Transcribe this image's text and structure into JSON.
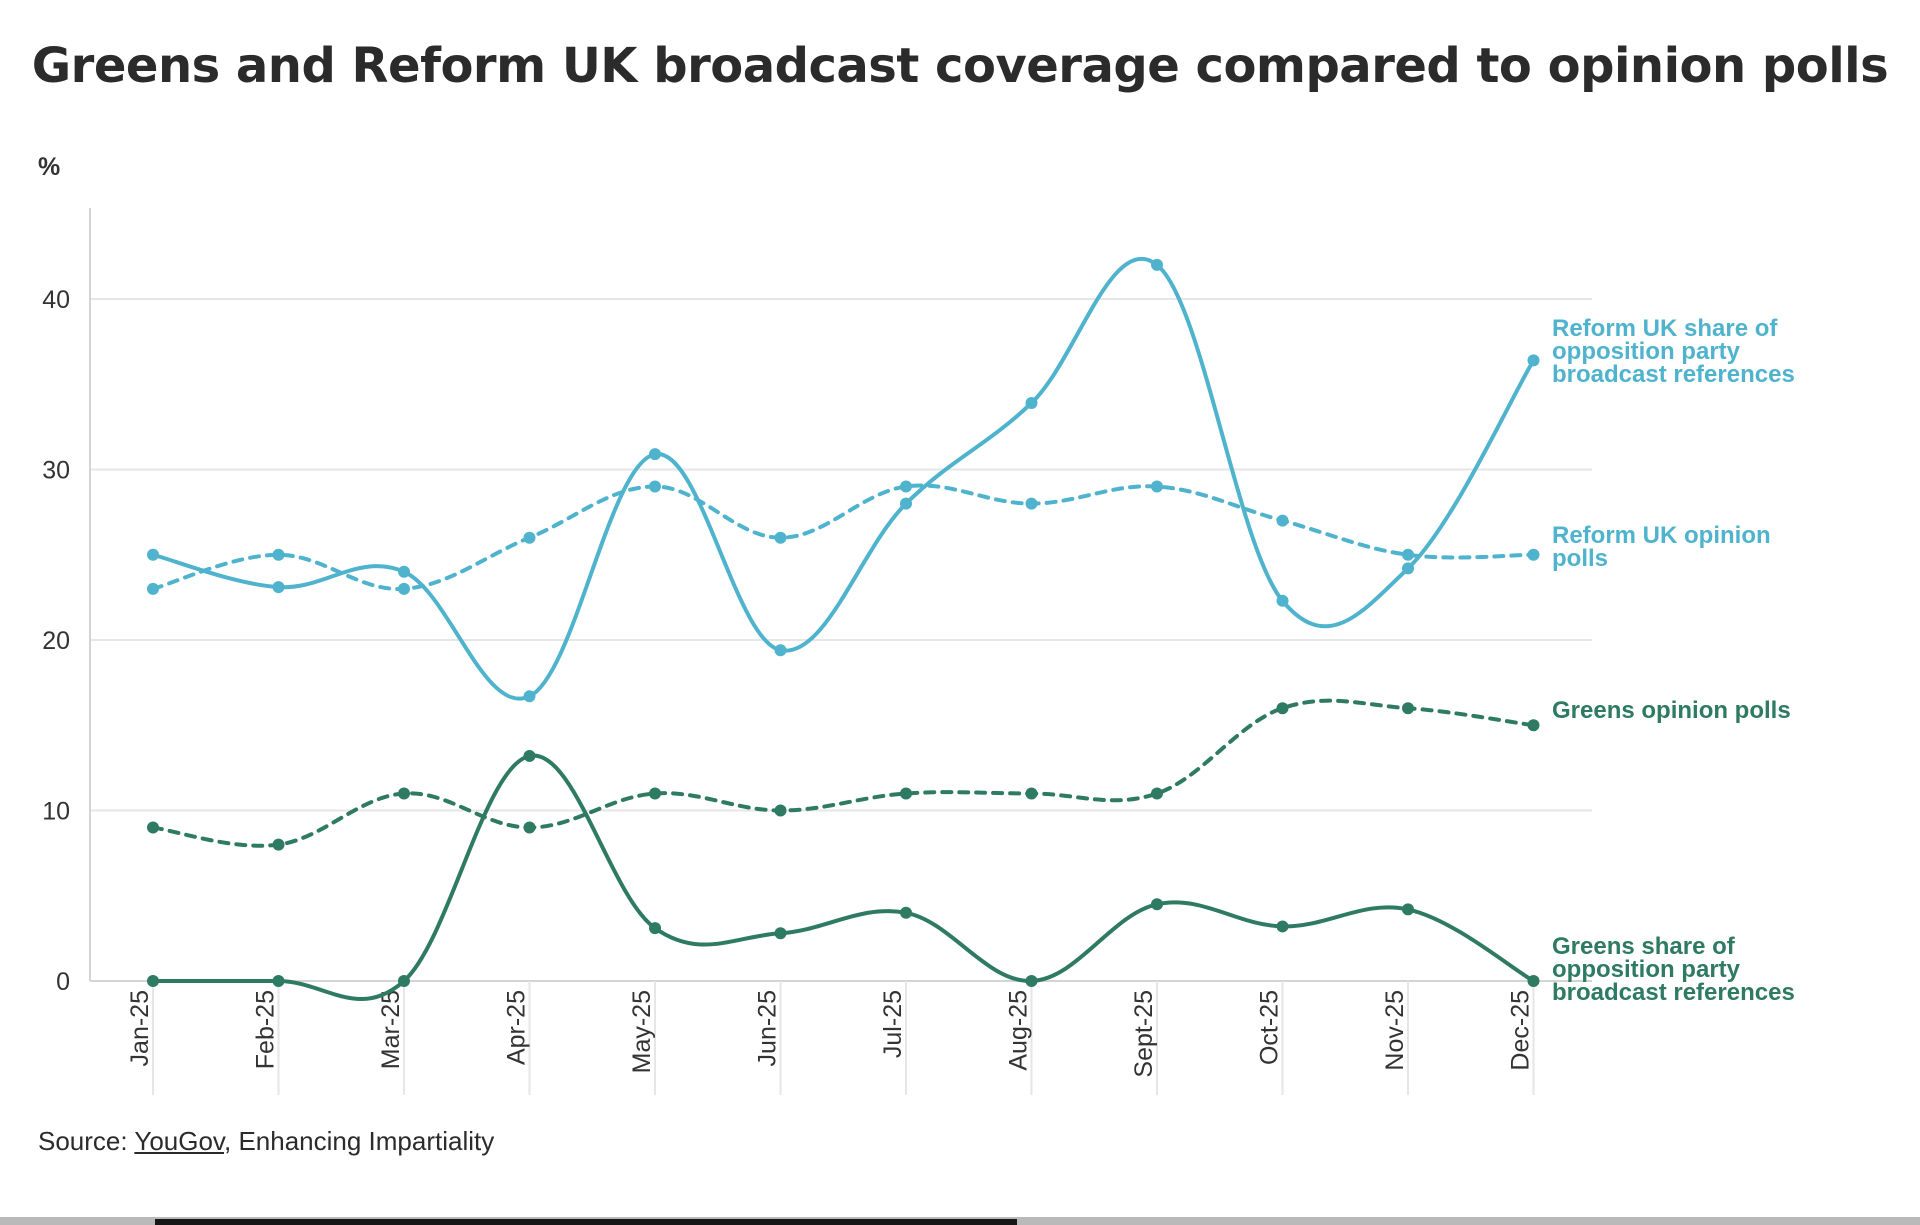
{
  "title": "Greens and Reform UK broadcast coverage compared to opinion polls",
  "source": {
    "prefix": "Source: ",
    "link_text": "YouGov",
    "suffix": ", Enhancing Impartiality"
  },
  "colors": {
    "reform": "#4fb3cd",
    "greens": "#2e7a62",
    "grid": "#e6e6e6",
    "axis": "#d4d4d4"
  },
  "chart_data": {
    "type": "line",
    "title": "Greens and Reform UK broadcast coverage compared to opinion polls",
    "ylabel": "%",
    "xlabel": "",
    "ylim": [
      0,
      45
    ],
    "yticks": [
      0,
      10,
      20,
      30,
      40
    ],
    "grid": true,
    "legend": "direct labels at right end of each line",
    "categories": [
      "Jan-25",
      "Feb-25",
      "Mar-25",
      "Apr-25",
      "May-25",
      "Jun-25",
      "Jul-25",
      "Aug-25",
      "Sept-25",
      "Oct-25",
      "Nov-25",
      "Dec-25"
    ],
    "series": [
      {
        "name": "Reform UK share of opposition party broadcast references",
        "label_lines": [
          "Reform UK share of",
          "opposition party",
          "broadcast references"
        ],
        "color": "#4fb3cd",
        "style": "solid",
        "values": [
          25,
          23.1,
          24,
          16.7,
          30.9,
          19.4,
          28,
          33.9,
          42,
          22.3,
          24.2,
          36.4
        ]
      },
      {
        "name": "Reform UK opinion polls",
        "label_lines": [
          "Reform UK opinion",
          "polls"
        ],
        "color": "#4fb3cd",
        "style": "dashed",
        "values": [
          23,
          25,
          23,
          26,
          29,
          26,
          29,
          28,
          29,
          27,
          25,
          25
        ]
      },
      {
        "name": "Greens opinion polls",
        "label_lines": [
          "Greens opinion polls"
        ],
        "color": "#2e7a62",
        "style": "dashed",
        "values": [
          9,
          8,
          11,
          9,
          11,
          10,
          11,
          11,
          11,
          16,
          16,
          15
        ]
      },
      {
        "name": "Greens share of opposition party broadcast references",
        "label_lines": [
          "Greens share of",
          "opposition party",
          "broadcast references"
        ],
        "color": "#2e7a62",
        "style": "solid",
        "values": [
          0,
          0,
          0,
          13.2,
          3.1,
          2.8,
          4,
          0,
          4.5,
          3.2,
          4.2,
          0
        ]
      }
    ]
  }
}
